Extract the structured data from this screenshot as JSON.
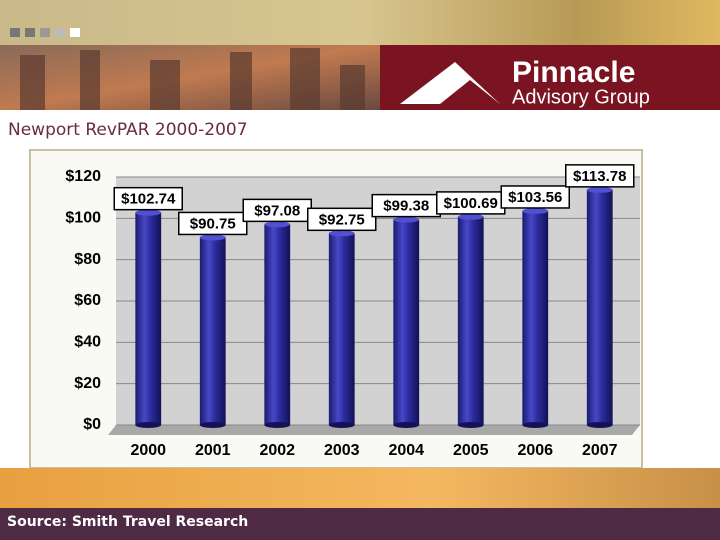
{
  "header": {
    "brand": "Pinnacle",
    "subbrand": "Advisory Group"
  },
  "chart_data": {
    "type": "bar",
    "title": "Newport RevPAR 2000-2007",
    "categories": [
      "2000",
      "2001",
      "2002",
      "2003",
      "2004",
      "2005",
      "2006",
      "2007"
    ],
    "values": [
      102.74,
      90.75,
      97.08,
      92.75,
      99.38,
      100.69,
      103.56,
      113.78
    ],
    "value_labels": [
      "$102.74",
      "$90.75",
      "$97.08",
      "$92.75",
      "$99.38",
      "$100.69",
      "$103.56",
      "$113.78"
    ],
    "color": "#2b2b9c",
    "ylim": [
      0,
      120
    ],
    "yticks": [
      {
        "value": 0,
        "label": "$0"
      },
      {
        "value": 20,
        "label": "$20"
      },
      {
        "value": 40,
        "label": "$40"
      },
      {
        "value": 60,
        "label": "$60"
      },
      {
        "value": 80,
        "label": "$80"
      },
      {
        "value": 100,
        "label": "$100"
      },
      {
        "value": 120,
        "label": "$120"
      }
    ],
    "grid": true
  },
  "footer": {
    "source": "Source: Smith Travel Research"
  }
}
